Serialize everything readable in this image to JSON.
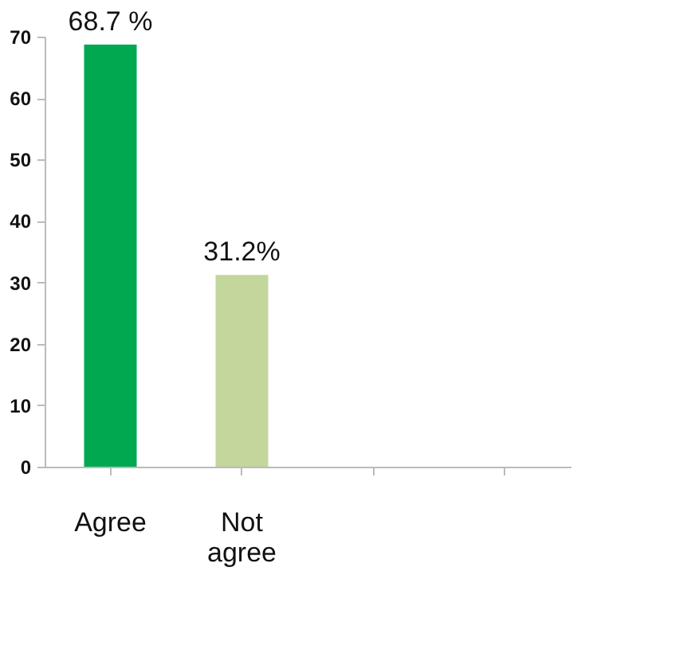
{
  "chart_data": {
    "type": "bar",
    "categories": [
      "Agree",
      "Not agree",
      null,
      null
    ],
    "values": [
      68.7,
      31.2,
      null,
      null
    ],
    "colors": [
      "#00a84f",
      "#c3d69b",
      "#000000",
      "#000000"
    ],
    "value_labels": [
      "68.7 %",
      "31.2%",
      null,
      null
    ],
    "ylim": [
      0,
      70
    ],
    "yticks": [
      0,
      10,
      20,
      30,
      40,
      50,
      60,
      70
    ],
    "grid": false
  }
}
